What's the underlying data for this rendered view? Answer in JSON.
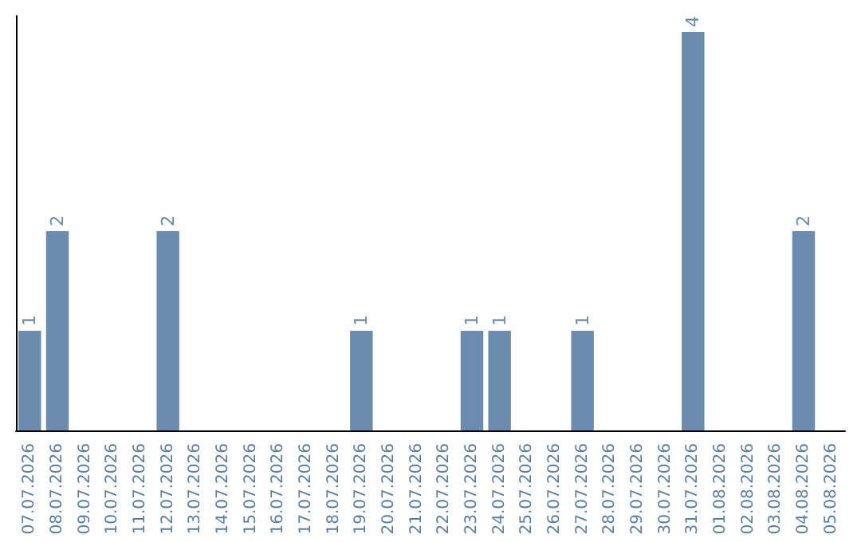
{
  "chart_data": {
    "type": "bar",
    "categories": [
      "07.07.2026",
      "08.07.2026",
      "09.07.2026",
      "10.07.2026",
      "11.07.2026",
      "12.07.2026",
      "13.07.2026",
      "14.07.2026",
      "15.07.2026",
      "16.07.2026",
      "17.07.2026",
      "18.07.2026",
      "19.07.2026",
      "20.07.2026",
      "21.07.2026",
      "22.07.2026",
      "23.07.2026",
      "24.07.2026",
      "25.07.2026",
      "26.07.2026",
      "27.07.2026",
      "28.07.2026",
      "29.07.2026",
      "30.07.2026",
      "31.07.2026",
      "01.08.2026",
      "02.08.2026",
      "03.08.2026",
      "04.08.2026",
      "05.08.2026"
    ],
    "values": [
      1,
      2,
      0,
      0,
      0,
      2,
      0,
      0,
      0,
      0,
      0,
      0,
      1,
      0,
      0,
      0,
      1,
      1,
      0,
      0,
      1,
      0,
      0,
      0,
      4,
      0,
      0,
      0,
      2,
      0
    ],
    "value_labels": [
      "1",
      "2",
      null,
      null,
      null,
      "2",
      null,
      null,
      null,
      null,
      null,
      null,
      "1",
      null,
      null,
      null,
      "1",
      "1",
      null,
      null,
      "1",
      null,
      null,
      null,
      "4",
      null,
      null,
      null,
      "2",
      null
    ],
    "color": "#6b8cae",
    "tick_labels": "x"
  }
}
